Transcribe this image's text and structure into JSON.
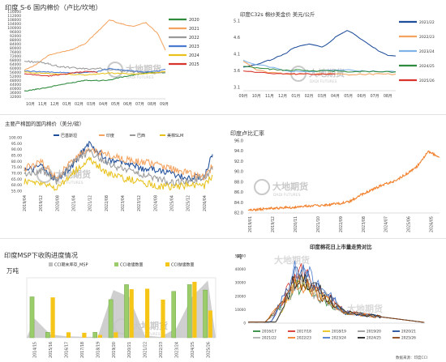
{
  "colors": {
    "orange": "#F4A460",
    "green": "#2E8B3E",
    "blue": "#4A7BD0",
    "yellow": "#E8C21A",
    "gray": "#9A9A9A",
    "red": "#D9342B",
    "navy": "#1F4E9A",
    "sky": "#7FB3E8",
    "watermark": "#C9C9C9",
    "axis": "#BDBDBD"
  },
  "watermark": {
    "brand_cn": "大地期货",
    "brand_en": "DADI FUTURES"
  },
  "panels": {
    "p1": {
      "title": "印度 S-6 国内棉价（卢比/坎地）"
    },
    "p2": {
      "title": "印度C32s 棉纱美金价  美元/公斤"
    },
    "p3": {
      "title": "主要产棉国的国内棉价（美分/磅）"
    },
    "p4": {
      "title": "印度卢比汇率"
    },
    "p5": {
      "title": "印度MSP下收购进度情况",
      "unit": "万吨"
    },
    "p6": {
      "title": "印度棉花日上市量走势对比",
      "unit": "吨",
      "footer": "数据来源：印度CCI"
    }
  },
  "chart_data": [
    {
      "id": "p1",
      "type": "line",
      "xlabels": [
        "10月",
        "11月",
        "12月",
        "01月",
        "02月",
        "03月",
        "04月",
        "05月",
        "06月",
        "07月",
        "08月",
        "09月"
      ],
      "yticks": [
        32000,
        36000,
        40000,
        44000,
        48000,
        52000,
        56000,
        60000,
        64000,
        68000,
        72000,
        76000,
        80000,
        84000,
        88000,
        92000,
        96000,
        100000,
        104000,
        108000,
        112000,
        116000
      ],
      "ylim": [
        30000,
        118000
      ],
      "series": [
        {
          "name": "2020",
          "color": "#2E8B3E",
          "x": [
            0,
            1,
            2,
            3,
            4,
            5,
            6,
            7,
            8,
            9,
            10,
            11,
            11.6
          ],
          "y": [
            37500,
            39500,
            41500,
            44000,
            46000,
            48500,
            48000,
            48500,
            51500,
            53500,
            55500,
            56000,
            55800
          ]
        },
        {
          "name": "2021",
          "color": "#F4A460",
          "x": [
            0,
            1,
            2,
            3,
            4,
            5,
            6,
            7,
            8,
            9,
            10,
            11,
            11.6
          ],
          "y": [
            58500,
            64000,
            73000,
            76000,
            79000,
            84500,
            96000,
            108000,
            104000,
            101500,
            105500,
            94000,
            78000
          ]
        },
        {
          "name": "2022",
          "color": "#9A9A9A",
          "x": [
            0,
            1,
            2,
            3,
            4,
            5,
            6,
            7,
            8,
            9,
            10,
            11,
            11.6
          ],
          "y": [
            67000,
            66500,
            64500,
            61500,
            60500,
            59500,
            60000,
            59000,
            57500,
            56500,
            56000,
            55500,
            55500
          ]
        },
        {
          "name": "2023",
          "color": "#4A7BD0",
          "x": [
            0,
            1,
            2,
            3,
            4,
            5,
            6,
            7,
            8,
            9,
            10,
            11,
            11.6
          ],
          "y": [
            57500,
            57000,
            56500,
            56000,
            55500,
            56000,
            57000,
            60000,
            58500,
            57500,
            56500,
            57500,
            59000
          ]
        },
        {
          "name": "2024",
          "color": "#E8C21A",
          "x": [
            0,
            1,
            2,
            3,
            4,
            5,
            6,
            7,
            8,
            9,
            10,
            11,
            11.6
          ],
          "y": [
            56500,
            55500,
            55000,
            54500,
            54000,
            53500,
            54500,
            55500,
            55000,
            54500,
            55000,
            56000,
            57000
          ]
        },
        {
          "name": "2025",
          "color": "#D9342B",
          "x": [
            0,
            1,
            2,
            3,
            4,
            5,
            6
          ],
          "y": [
            54500,
            53500,
            52500,
            54000,
            55500,
            57000,
            56500
          ]
        }
      ]
    },
    {
      "id": "p2",
      "type": "line",
      "xlabels": [
        "09月",
        "10月",
        "11月",
        "12月",
        "01月",
        "02月",
        "03月",
        "04月",
        "05月",
        "06月",
        "07月",
        "08月"
      ],
      "yticks": [
        3.1,
        3.6,
        4.1,
        4.6,
        5.1
      ],
      "ylim": [
        3.0,
        5.25
      ],
      "series": [
        {
          "name": "2021/22",
          "color": "#1F4E9A",
          "x": [
            0,
            1,
            2,
            3,
            4,
            5,
            6,
            7,
            8,
            9,
            10,
            11,
            11.6
          ],
          "y": [
            3.7,
            3.78,
            3.92,
            4.08,
            4.32,
            4.42,
            4.3,
            4.62,
            4.82,
            4.55,
            4.28,
            4.05,
            4.05
          ]
        },
        {
          "name": "2022/23",
          "color": "#F4A460",
          "x": [
            0,
            1,
            2,
            3,
            4,
            5,
            6,
            7,
            8,
            9,
            10,
            11,
            11.6
          ],
          "y": [
            3.9,
            3.62,
            3.55,
            3.52,
            3.5,
            3.5,
            3.52,
            3.5,
            3.48,
            3.5,
            3.5,
            3.5,
            3.5
          ]
        },
        {
          "name": "2023/24",
          "color": "#7FB3E8",
          "x": [
            0,
            1,
            2,
            3,
            4,
            5,
            6,
            7,
            8,
            9,
            10,
            11,
            11.6
          ],
          "y": [
            3.9,
            3.8,
            3.72,
            3.62,
            3.58,
            3.58,
            3.6,
            3.62,
            3.62,
            3.6,
            3.58,
            3.57,
            3.57
          ]
        },
        {
          "name": "2024/25",
          "color": "#2E8B3E",
          "x": [
            0,
            1,
            2,
            3,
            4,
            5,
            6,
            7,
            8,
            9,
            10,
            11,
            11.6
          ],
          "y": [
            3.72,
            3.7,
            3.65,
            3.62,
            3.62,
            3.6,
            3.6,
            3.6,
            3.58,
            3.58,
            3.58,
            3.57,
            3.57
          ]
        },
        {
          "name": "2025/26",
          "color": "#D9342B",
          "x": [
            0,
            1,
            2,
            3,
            4,
            5,
            6,
            7
          ],
          "y": [
            3.6,
            3.56,
            3.52,
            3.5,
            3.5,
            3.5,
            3.5,
            3.5
          ]
        }
      ]
    },
    {
      "id": "p3",
      "type": "line",
      "xlabels": [
        "2019/04",
        "2019/12",
        "2020/08",
        "2021/04",
        "2021/12",
        "2022/08",
        "2023/04",
        "2023/12",
        "2024/08",
        "2025/04",
        "2025/12",
        "2026/04"
      ],
      "yticks": [
        55.0,
        60.0,
        65.0,
        70.0,
        75.0,
        80.0,
        85.0,
        90.0,
        95.0,
        100.0
      ],
      "ylim": [
        55,
        100
      ],
      "series": [
        {
          "name": "巴基斯坦",
          "color": "#1F4E9A",
          "x": [
            0,
            1,
            2,
            3,
            4,
            5,
            6,
            7,
            8,
            9,
            10,
            11,
            11.5
          ],
          "y": [
            72,
            76,
            64,
            78,
            96,
            81,
            78,
            75,
            73,
            70,
            66,
            67,
            86
          ]
        },
        {
          "name": "印度",
          "color": "#F4A460",
          "x": [
            0,
            1,
            2,
            3,
            4,
            5,
            6,
            7,
            8,
            9,
            10,
            11,
            11.5
          ],
          "y": [
            74,
            80,
            66,
            82,
            90,
            86,
            82,
            80,
            78,
            74,
            70,
            66,
            76
          ]
        },
        {
          "name": "巴西",
          "color": "#9A9A9A",
          "x": [
            0,
            1,
            2,
            3,
            4,
            5,
            6,
            7,
            8,
            9,
            10,
            11,
            11.5
          ],
          "y": [
            70,
            72,
            63,
            80,
            88,
            79,
            74,
            70,
            66,
            62,
            64,
            66,
            73
          ]
        },
        {
          "name": "美棉SLM",
          "color": "#E8C21A",
          "x": [
            0,
            1,
            2,
            3,
            4,
            5,
            6,
            7,
            8,
            9,
            10,
            11,
            11.5
          ],
          "y": [
            63,
            62,
            57,
            71,
            82,
            71,
            66,
            63,
            60,
            58,
            60,
            59,
            68
          ]
        }
      ]
    },
    {
      "id": "p4",
      "type": "line",
      "xlabels": [
        "2019/01",
        "2019/12",
        "2020/11",
        "2021/10",
        "2022/09",
        "2023/08",
        "2024/07",
        "2025/06",
        "2026/05"
      ],
      "yticks": [
        82.0,
        84.0,
        86.0,
        88.0,
        90.0,
        92.0,
        94.0,
        96.0
      ],
      "ylim": [
        82,
        96
      ],
      "series": [
        {
          "name": "印度卢比汇率",
          "color": "#F2802B",
          "x": [
            0,
            1,
            2,
            3,
            4,
            5,
            6,
            7,
            8,
            9,
            10,
            11,
            12,
            13,
            14,
            15,
            16,
            17
          ],
          "y": [
            82.5,
            82.7,
            82.9,
            83.0,
            83.1,
            83.3,
            83.4,
            83.6,
            83.8,
            84.2,
            85.5,
            86.5,
            87.5,
            88.2,
            89.5,
            91.0,
            94.0,
            92.8
          ]
        }
      ]
    },
    {
      "id": "p5",
      "type": "bar",
      "categories": [
        "2014/15",
        "2015/16",
        "2016/17",
        "2017/18",
        "2018/19",
        "2019/20",
        "2020/21",
        "2021/22",
        "2022/23",
        "2023/24",
        "2024/25",
        "2025/26"
      ],
      "ylim": [
        0,
        220
      ],
      "series": [
        {
          "name": "CCI期末库存_MSP",
          "color": "#BFBFBF",
          "kind": "area",
          "values": [
            70,
            12,
            5,
            4,
            3,
            175,
            150,
            8,
            3,
            35,
            150,
            210
          ]
        },
        {
          "name": "CCI收储数量",
          "color": "#9ACD6A",
          "kind": "bar",
          "values": [
            150,
            20,
            0,
            0,
            20,
            140,
            195,
            0,
            0,
            170,
            195,
            175
          ]
        },
        {
          "name": "CCI抛储数量",
          "color": "#F5C518",
          "kind": "bar",
          "values": [
            0,
            148,
            20,
            18,
            10,
            20,
            178,
            180,
            140,
            0,
            205,
            100
          ]
        }
      ]
    },
    {
      "id": "p6",
      "type": "line",
      "yticks": [
        0,
        10000,
        20000,
        30000,
        40000,
        50000
      ],
      "ylim": [
        0,
        50000
      ],
      "series": [
        {
          "name": "2016/17",
          "color": "#2E8B3E"
        },
        {
          "name": "2017/18",
          "color": "#D9342B"
        },
        {
          "name": "2018/19",
          "color": "#E8C21A"
        },
        {
          "name": "2019/20",
          "color": "#9A9A9A"
        },
        {
          "name": "2020/21",
          "color": "#1F4E9A"
        },
        {
          "name": "2021/22",
          "color": "#B0B0B0"
        },
        {
          "name": "2022/23",
          "color": "#F2802B"
        },
        {
          "name": "2023/24",
          "color": "#4A7BD0"
        },
        {
          "name": "2024/25",
          "color": "#222222"
        },
        {
          "name": "2025/26",
          "color": "#8B4513"
        }
      ]
    }
  ]
}
